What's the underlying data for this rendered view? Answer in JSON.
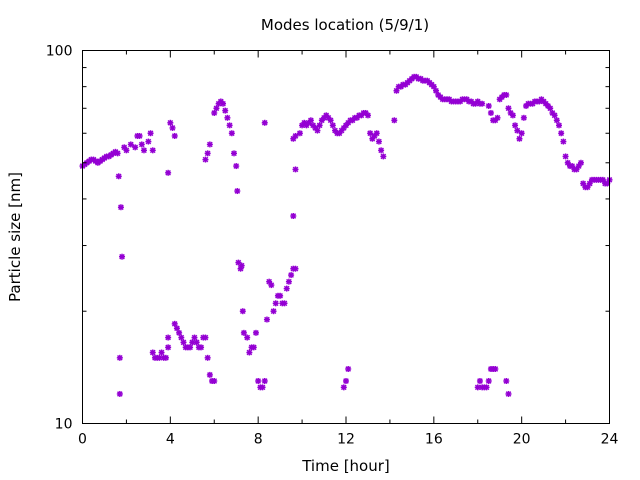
{
  "chart_data": {
    "type": "scatter",
    "title": "Modes location (5/9/1)",
    "xlabel": "Time [hour]",
    "ylabel": "Particle size [nm]",
    "xlim": [
      0,
      24
    ],
    "ylim": [
      10,
      100
    ],
    "yscale": "log",
    "xticks": [
      0,
      4,
      8,
      12,
      16,
      20,
      24
    ],
    "yticks": [
      10,
      100
    ],
    "grid": false,
    "legend": "none",
    "marker_color": "#9400d3",
    "series": [
      {
        "points": [
          [
            0.0,
            49
          ],
          [
            0.1,
            49.5
          ],
          [
            0.2,
            50
          ],
          [
            0.3,
            50.5
          ],
          [
            0.4,
            51
          ],
          [
            0.5,
            51
          ],
          [
            0.6,
            50.5
          ],
          [
            0.7,
            50
          ],
          [
            0.8,
            50.5
          ],
          [
            0.9,
            51
          ],
          [
            1.0,
            51.5
          ],
          [
            1.1,
            52
          ],
          [
            1.2,
            52
          ],
          [
            1.3,
            52.5
          ],
          [
            1.4,
            53
          ],
          [
            1.5,
            53.5
          ],
          [
            1.6,
            53
          ],
          [
            1.65,
            46
          ],
          [
            1.75,
            38
          ],
          [
            1.8,
            28
          ],
          [
            1.9,
            55
          ],
          [
            2.0,
            54
          ],
          [
            2.2,
            56
          ],
          [
            2.4,
            55
          ],
          [
            2.5,
            59
          ],
          [
            2.6,
            59
          ],
          [
            2.7,
            56
          ],
          [
            2.8,
            54
          ],
          [
            3.0,
            57
          ],
          [
            3.1,
            60
          ],
          [
            3.2,
            54
          ],
          [
            3.9,
            47
          ],
          [
            4.0,
            64
          ],
          [
            4.1,
            62
          ],
          [
            4.2,
            59
          ],
          [
            5.6,
            51
          ],
          [
            5.7,
            53
          ],
          [
            5.8,
            56
          ],
          [
            6.0,
            68
          ],
          [
            6.1,
            70
          ],
          [
            6.2,
            72
          ],
          [
            6.3,
            73
          ],
          [
            6.4,
            72
          ],
          [
            6.5,
            69
          ],
          [
            6.6,
            66
          ],
          [
            6.7,
            63
          ],
          [
            6.8,
            60
          ],
          [
            6.9,
            53
          ],
          [
            7.0,
            49
          ],
          [
            7.05,
            42
          ],
          [
            8.3,
            64
          ],
          [
            9.6,
            36
          ],
          [
            9.7,
            48
          ],
          [
            9.6,
            58
          ],
          [
            9.7,
            59
          ],
          [
            9.9,
            60
          ],
          [
            10.0,
            63
          ],
          [
            10.1,
            64
          ],
          [
            10.2,
            63
          ],
          [
            10.3,
            64
          ],
          [
            10.4,
            65
          ],
          [
            10.5,
            63
          ],
          [
            10.6,
            62
          ],
          [
            10.7,
            61
          ],
          [
            10.8,
            63
          ],
          [
            10.9,
            65
          ],
          [
            11.0,
            66
          ],
          [
            11.1,
            67
          ],
          [
            11.2,
            66
          ],
          [
            11.3,
            65
          ],
          [
            11.4,
            63
          ],
          [
            11.5,
            61
          ],
          [
            11.6,
            60
          ],
          [
            11.7,
            60
          ],
          [
            11.8,
            61
          ],
          [
            11.9,
            62
          ],
          [
            12.0,
            63
          ],
          [
            12.1,
            64
          ],
          [
            12.2,
            65
          ],
          [
            12.3,
            65
          ],
          [
            12.4,
            66
          ],
          [
            12.5,
            66
          ],
          [
            12.6,
            67
          ],
          [
            12.7,
            67
          ],
          [
            12.8,
            68
          ],
          [
            12.9,
            68
          ],
          [
            13.0,
            67
          ],
          [
            13.1,
            60
          ],
          [
            13.2,
            58
          ],
          [
            13.3,
            59
          ],
          [
            13.4,
            60
          ],
          [
            13.5,
            57
          ],
          [
            13.6,
            54
          ],
          [
            13.7,
            52
          ],
          [
            14.2,
            65
          ],
          [
            14.3,
            78
          ],
          [
            14.4,
            80
          ],
          [
            14.5,
            80
          ],
          [
            14.6,
            81
          ],
          [
            14.7,
            81
          ],
          [
            14.8,
            82
          ],
          [
            14.9,
            83
          ],
          [
            15.0,
            84
          ],
          [
            15.1,
            85
          ],
          [
            15.2,
            85
          ],
          [
            15.3,
            84
          ],
          [
            15.4,
            84
          ],
          [
            15.5,
            83
          ],
          [
            15.6,
            83
          ],
          [
            15.7,
            83
          ],
          [
            15.8,
            82
          ],
          [
            15.9,
            81
          ],
          [
            16.0,
            80
          ],
          [
            16.1,
            78
          ],
          [
            16.2,
            76
          ],
          [
            16.3,
            75
          ],
          [
            16.4,
            74
          ],
          [
            16.5,
            74
          ],
          [
            16.6,
            74
          ],
          [
            16.7,
            74
          ],
          [
            16.8,
            73
          ],
          [
            16.9,
            73
          ],
          [
            17.0,
            73
          ],
          [
            17.1,
            73
          ],
          [
            17.2,
            73
          ],
          [
            17.3,
            74
          ],
          [
            17.4,
            74
          ],
          [
            17.5,
            74
          ],
          [
            17.6,
            73
          ],
          [
            17.7,
            73
          ],
          [
            17.8,
            72
          ],
          [
            17.9,
            72
          ],
          [
            18.0,
            73
          ],
          [
            18.1,
            72
          ],
          [
            18.2,
            72
          ],
          [
            18.5,
            71
          ],
          [
            18.6,
            68
          ],
          [
            18.7,
            65
          ],
          [
            18.8,
            65
          ],
          [
            18.9,
            66
          ],
          [
            19.0,
            74
          ],
          [
            19.1,
            75
          ],
          [
            19.2,
            76
          ],
          [
            19.3,
            76
          ],
          [
            19.4,
            70
          ],
          [
            19.5,
            68
          ],
          [
            19.6,
            67
          ],
          [
            19.7,
            63
          ],
          [
            19.8,
            61
          ],
          [
            19.9,
            58
          ],
          [
            20.0,
            60
          ],
          [
            20.1,
            66
          ],
          [
            20.2,
            71
          ],
          [
            20.3,
            72
          ],
          [
            20.4,
            72
          ],
          [
            20.5,
            72
          ],
          [
            20.6,
            73
          ],
          [
            20.7,
            73
          ],
          [
            20.8,
            73
          ],
          [
            20.9,
            74
          ],
          [
            21.0,
            73
          ],
          [
            21.1,
            72
          ],
          [
            21.2,
            71
          ],
          [
            21.3,
            70
          ],
          [
            21.4,
            68
          ],
          [
            21.5,
            67
          ],
          [
            21.6,
            65
          ],
          [
            21.7,
            63
          ],
          [
            21.8,
            60
          ],
          [
            21.9,
            57
          ],
          [
            22.0,
            52
          ],
          [
            22.1,
            50
          ],
          [
            22.2,
            49
          ],
          [
            22.3,
            49
          ],
          [
            22.4,
            48
          ],
          [
            22.5,
            48
          ],
          [
            22.6,
            49
          ],
          [
            22.7,
            50
          ],
          [
            22.8,
            44
          ],
          [
            22.9,
            43
          ],
          [
            23.0,
            43
          ],
          [
            23.1,
            44
          ],
          [
            23.2,
            45
          ],
          [
            23.3,
            45
          ],
          [
            23.4,
            45
          ],
          [
            23.5,
            45
          ],
          [
            23.6,
            45
          ],
          [
            23.7,
            45
          ],
          [
            23.8,
            44
          ],
          [
            23.9,
            44
          ],
          [
            24.0,
            45
          ],
          [
            1.7,
            15
          ],
          [
            1.7,
            12
          ],
          [
            3.2,
            15.5
          ],
          [
            3.3,
            15
          ],
          [
            3.4,
            15
          ],
          [
            3.5,
            15
          ],
          [
            3.6,
            15.5
          ],
          [
            3.7,
            15
          ],
          [
            3.8,
            15
          ],
          [
            3.9,
            16
          ],
          [
            3.9,
            17
          ],
          [
            4.2,
            18.5
          ],
          [
            4.3,
            18
          ],
          [
            4.4,
            17.5
          ],
          [
            4.5,
            17
          ],
          [
            4.6,
            16.5
          ],
          [
            4.7,
            16
          ],
          [
            4.8,
            16
          ],
          [
            4.9,
            16
          ],
          [
            5.0,
            16.5
          ],
          [
            5.1,
            17
          ],
          [
            5.2,
            16.5
          ],
          [
            5.3,
            16
          ],
          [
            5.4,
            16
          ],
          [
            5.5,
            17
          ],
          [
            5.6,
            17
          ],
          [
            5.7,
            15
          ],
          [
            5.8,
            13.5
          ],
          [
            5.9,
            13
          ],
          [
            6.0,
            13
          ],
          [
            7.1,
            27
          ],
          [
            7.2,
            26
          ],
          [
            7.25,
            26.5
          ],
          [
            7.3,
            20
          ],
          [
            7.35,
            17.5
          ],
          [
            7.5,
            17
          ],
          [
            7.6,
            15.5
          ],
          [
            7.7,
            16
          ],
          [
            7.8,
            16
          ],
          [
            7.9,
            17.5
          ],
          [
            8.0,
            13
          ],
          [
            8.1,
            12.5
          ],
          [
            8.2,
            12.5
          ],
          [
            8.3,
            13
          ],
          [
            8.4,
            19
          ],
          [
            8.5,
            24
          ],
          [
            8.6,
            23.5
          ],
          [
            8.7,
            20
          ],
          [
            8.8,
            21
          ],
          [
            8.9,
            22
          ],
          [
            9.0,
            22
          ],
          [
            9.1,
            21
          ],
          [
            9.2,
            21
          ],
          [
            9.3,
            23
          ],
          [
            9.4,
            24
          ],
          [
            9.5,
            25
          ],
          [
            9.6,
            26
          ],
          [
            9.7,
            26
          ],
          [
            11.9,
            12.5
          ],
          [
            12.0,
            13
          ],
          [
            12.1,
            14
          ],
          [
            18.0,
            12.5
          ],
          [
            18.1,
            13
          ],
          [
            18.2,
            12.5
          ],
          [
            18.3,
            12.5
          ],
          [
            18.4,
            12.5
          ],
          [
            18.5,
            13
          ],
          [
            18.6,
            14
          ],
          [
            18.7,
            14
          ],
          [
            18.8,
            14
          ],
          [
            19.3,
            13
          ],
          [
            19.4,
            12
          ]
        ]
      }
    ]
  }
}
